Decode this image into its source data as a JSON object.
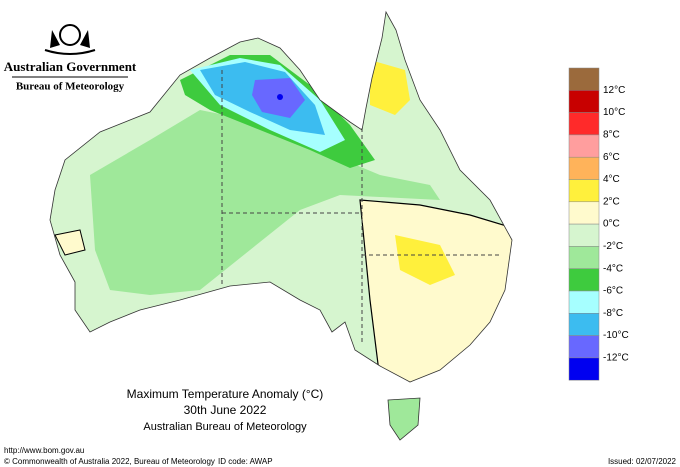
{
  "header": {
    "agency": "Australian Government",
    "bureau": "Bureau of Meteorology"
  },
  "map": {
    "title": "Maximum Temperature Anomaly (°C)",
    "date": "30th June 2022",
    "source": "Australian Bureau of Meteorology"
  },
  "legend": {
    "colors": [
      "#9b6a3c",
      "#c80000",
      "#ff2a2a",
      "#ff9e9e",
      "#ffb35a",
      "#fff03c",
      "#fffacd",
      "#d6f5cf",
      "#9fe89a",
      "#3ecb3e",
      "#a6ffff",
      "#3cbcf0",
      "#6868ff",
      "#0000f0"
    ],
    "labels": [
      "12°C",
      "10°C",
      "8°C",
      "6°C",
      "4°C",
      "2°C",
      "0°C",
      "-2°C",
      "-4°C",
      "-6°C",
      "-8°C",
      "-10°C",
      "-12°C"
    ]
  },
  "footer": {
    "url": "http://www.bom.gov.au",
    "copyright": "© Commonwealth of Australia 2022, Bureau of Meteorology",
    "id_code": "ID code: AWAP",
    "issued": "Issued: 02/07/2022"
  }
}
